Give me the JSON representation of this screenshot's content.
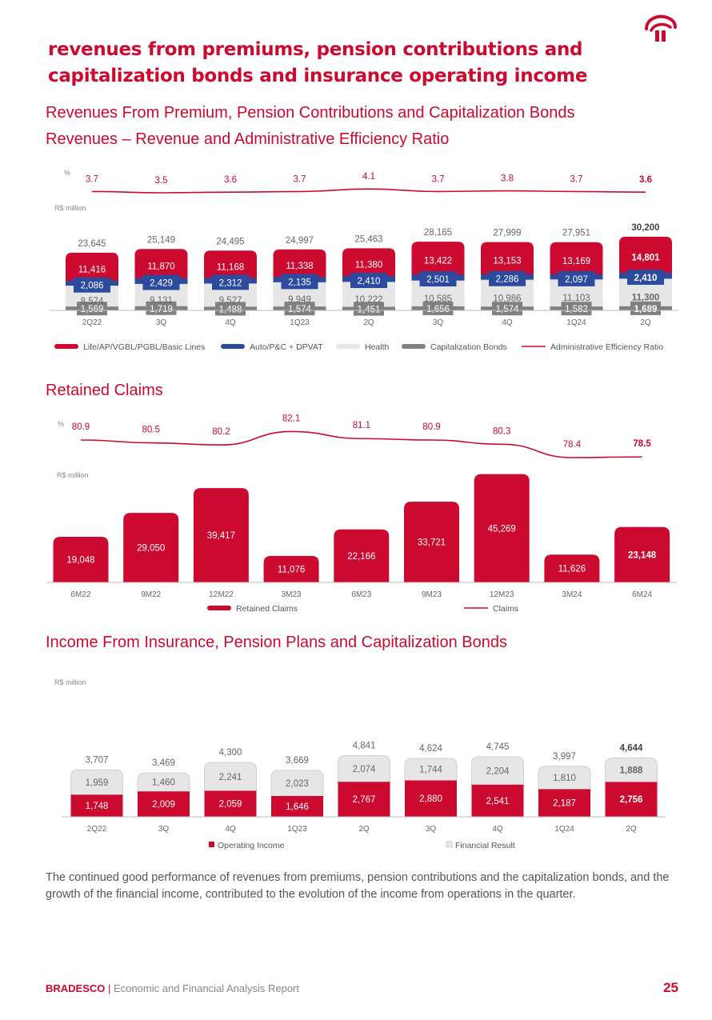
{
  "header": {
    "title_line1": "revenues from premiums, pension contributions and",
    "title_line2": "capitalization bonds and insurance operating income"
  },
  "sections": {
    "revenues_title_line1": "Revenues From Premium, Pension Contributions and Capitalization Bonds",
    "revenues_title_line2": "Revenues – Revenue and Administrative Efficiency Ratio",
    "claims_title": "Retained Claims",
    "income_title": "Income From Insurance, Pension Plans and Capitalization Bonds"
  },
  "colors": {
    "red": "#cc092f",
    "blue": "#2c4a9e",
    "light": "#e6e6e6",
    "dark": "#808080",
    "axis": "#bbbbbb"
  },
  "chart_data": [
    {
      "type": "bar",
      "stacked": true,
      "title": "Revenues – Revenue and Administrative Efficiency Ratio",
      "unit_label": "R$ million",
      "pct_label": "%",
      "categories": [
        "2Q22",
        "3Q",
        "4Q",
        "1Q23",
        "2Q",
        "3Q",
        "4Q",
        "1Q24",
        "2Q"
      ],
      "series": [
        {
          "name": "Capitalization Bonds",
          "values": [
            "1,569",
            "1,719",
            "1,488",
            "1,574",
            "1,451",
            "1,656",
            "1,574",
            "1,582",
            "1,689"
          ]
        },
        {
          "name": "Health",
          "values": [
            "8,574",
            "9,131",
            "9,527",
            "9,949",
            "10,222",
            "10,585",
            "10,986",
            "11,103",
            "11,300"
          ]
        },
        {
          "name": "Auto/P&C + DPVAT",
          "values": [
            "2,086",
            "2,429",
            "2,312",
            "2,135",
            "2,410",
            "2,501",
            "2,286",
            "2,097",
            "2,410"
          ]
        },
        {
          "name": "Life/AP/VGBL/PGBL/Basic Lines",
          "values": [
            "11,416",
            "11,870",
            "11,168",
            "11,338",
            "11,380",
            "13,422",
            "13,153",
            "13,169",
            "14,801"
          ]
        }
      ],
      "totals": [
        "23,645",
        "25,149",
        "24,495",
        "24,997",
        "25,463",
        "28,165",
        "27,999",
        "27,951",
        "30,200"
      ],
      "line": {
        "name": "Administrative Efficiency Ratio",
        "values": [
          "3.7",
          "3.5",
          "3.6",
          "3.7",
          "4.1",
          "3.7",
          "3.8",
          "3.7",
          "3.6"
        ]
      },
      "legend": [
        "Life/AP/VGBL/PGBL/Basic Lines",
        "Auto/P&C + DPVAT",
        "Health",
        "Capitalization Bonds",
        "Administrative Efficiency Ratio"
      ]
    },
    {
      "type": "bar",
      "title": "Retained Claims",
      "unit_label": "R$ million",
      "pct_label": "%",
      "categories": [
        "6M22",
        "9M22",
        "12M22",
        "3M23",
        "6M23",
        "9M23",
        "12M23",
        "3M24",
        "6M24"
      ],
      "values": [
        "19,048",
        "29,050",
        "39,417",
        "11,076",
        "22,166",
        "33,721",
        "45,269",
        "11,626",
        "23,148"
      ],
      "line": {
        "name": "Claims",
        "values": [
          "80.9",
          "80.5",
          "80.2",
          "82.1",
          "81.1",
          "80.9",
          "80.3",
          "78.4",
          "78.5"
        ]
      },
      "legend": [
        "Retained Claims",
        "Claims"
      ]
    },
    {
      "type": "bar",
      "stacked": true,
      "title": "Income From Insurance, Pension Plans and Capitalization Bonds",
      "unit_label": "R$ million",
      "categories": [
        "2Q22",
        "3Q",
        "4Q",
        "1Q23",
        "2Q",
        "3Q",
        "4Q",
        "1Q24",
        "2Q"
      ],
      "series": [
        {
          "name": "Operating Income",
          "values": [
            "1,748",
            "2,009",
            "2,059",
            "1,646",
            "2,767",
            "2,880",
            "2,541",
            "2,187",
            "2,756"
          ]
        },
        {
          "name": "Financial Result",
          "values": [
            "1,959",
            "1,460",
            "2,241",
            "2,023",
            "2,074",
            "1,744",
            "2,204",
            "1,810",
            "1,888"
          ]
        }
      ],
      "totals": [
        "3,707",
        "3,469",
        "4,300",
        "3,669",
        "4,841",
        "4,624",
        "4,745",
        "3,997",
        "4,644"
      ],
      "legend": [
        "Operating Income",
        "Financial Result"
      ]
    }
  ],
  "paragraph": "The continued good performance of revenues from premiums, pension contributions and the capitalization bonds, and the growth of the financial income, contributed to the evolution of the income from operations in the quarter.",
  "footer": {
    "brand": "BRADESCO",
    "separator": "|",
    "report": "Economic and Financial Analysis Report",
    "page_number": "25"
  }
}
